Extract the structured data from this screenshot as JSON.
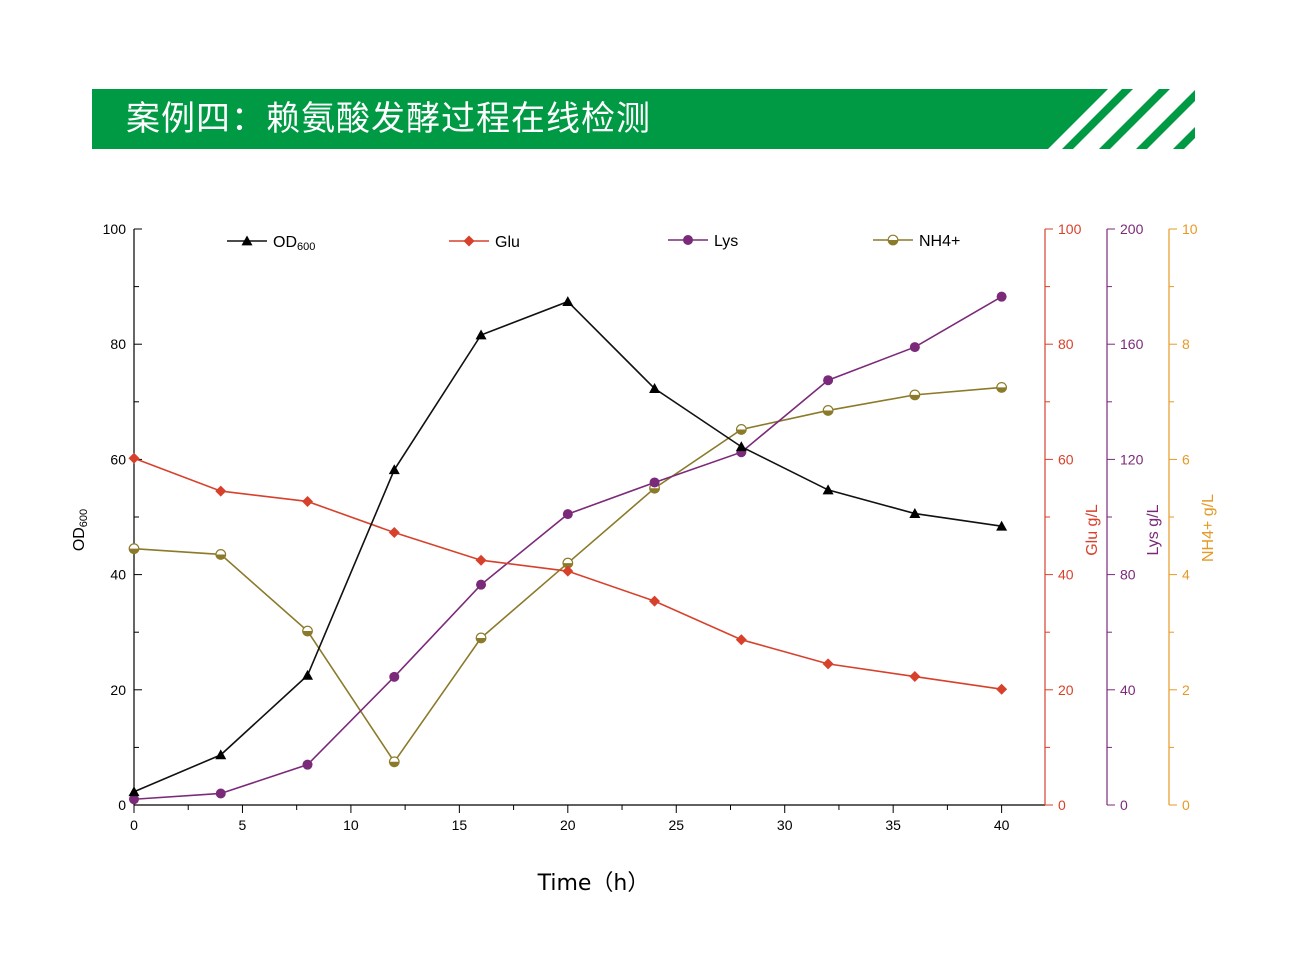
{
  "header": {
    "title": "案例四：赖氨酸发酵过程在线检测",
    "color": "#009a44"
  },
  "chart_data": {
    "type": "line",
    "xlabel": "Time（h）",
    "x": [
      0,
      4,
      8,
      12,
      16,
      20,
      24,
      28,
      32,
      36,
      40
    ],
    "xlim": [
      0,
      42
    ],
    "xticks": [
      "0",
      "5",
      "10",
      "15",
      "20",
      "25",
      "30",
      "35",
      "40"
    ],
    "axes": [
      {
        "id": "od",
        "label": "OD",
        "label_sub": "600",
        "color": "#000000",
        "side": "left",
        "ylim": [
          0,
          100
        ],
        "ticks": [
          "0",
          "20",
          "40",
          "60",
          "80",
          "100"
        ]
      },
      {
        "id": "glu",
        "label": "Glu g/L",
        "color": "#d7412c",
        "side": "right",
        "ylim": [
          0,
          100
        ],
        "ticks": [
          "0",
          "20",
          "40",
          "60",
          "80",
          "100"
        ]
      },
      {
        "id": "lys",
        "label": "Lys g/L",
        "color": "#7b2a7a",
        "side": "right",
        "ylim": [
          0,
          200
        ],
        "ticks": [
          "0",
          "40",
          "80",
          "120",
          "160",
          "200"
        ]
      },
      {
        "id": "nh4",
        "label": "NH4+ g/L",
        "color": "#e69a25",
        "side": "right",
        "ylim": [
          0,
          10
        ],
        "ticks": [
          "0",
          "2",
          "4",
          "6",
          "8",
          "10"
        ]
      }
    ],
    "series": [
      {
        "name": "OD",
        "name_sub": "600",
        "axis": "od",
        "color": "#111111",
        "marker": "triangle",
        "values": [
          2.3,
          8.7,
          22.5,
          58.2,
          81.6,
          87.4,
          72.3,
          62.2,
          54.7,
          50.6,
          48.4
        ]
      },
      {
        "name": "Glu",
        "axis": "glu",
        "color": "#d7412c",
        "marker": "diamond",
        "values": [
          60.2,
          54.5,
          52.7,
          47.3,
          42.5,
          40.6,
          35.4,
          28.7,
          24.5,
          22.3,
          20.1
        ]
      },
      {
        "name": "Lys",
        "axis": "lys",
        "color": "#7b2a7a",
        "marker": "circle",
        "values": [
          2.0,
          4.0,
          14.0,
          44.5,
          76.5,
          101.0,
          112.0,
          122.5,
          147.5,
          159.0,
          176.5
        ]
      },
      {
        "name": "NH4+",
        "axis": "nh4",
        "color": "#8b7a2a",
        "marker": "half-circle",
        "values": [
          4.45,
          4.35,
          3.02,
          0.75,
          2.9,
          4.2,
          5.5,
          6.52,
          6.85,
          7.12,
          7.25
        ]
      }
    ],
    "legend": "top",
    "grid": false
  }
}
